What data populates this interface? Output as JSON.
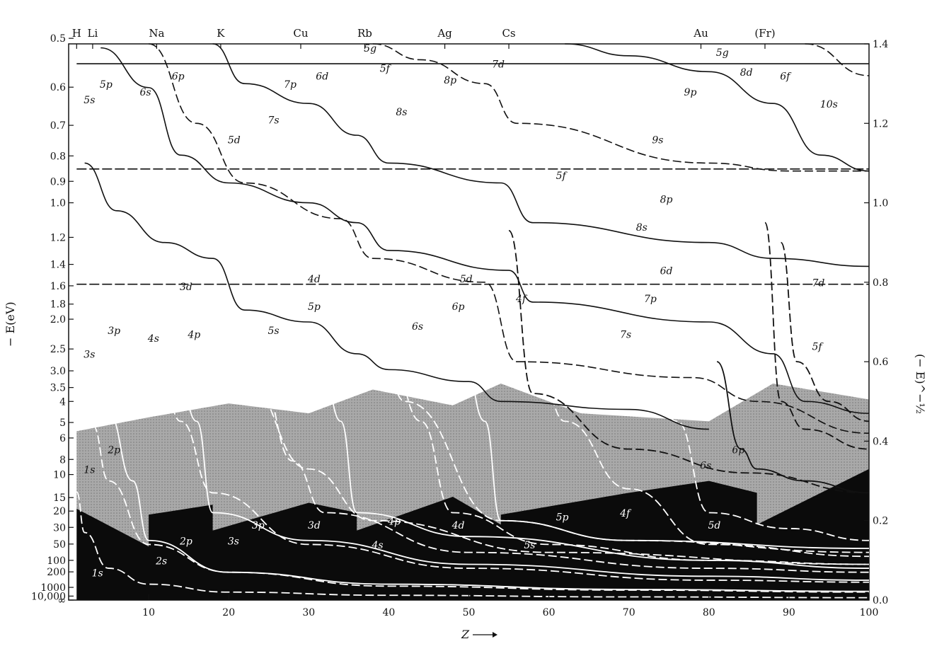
{
  "chart_data": {
    "type": "line",
    "title": "",
    "xlabel": "Z",
    "ylabel_left": "− E(eV)",
    "ylabel_right": "(− E)^−½",
    "xlim": [
      0,
      100
    ],
    "ylim_right": [
      0.0,
      1.4
    ],
    "x_ticks": [
      "10",
      "20",
      "30",
      "40",
      "50",
      "60",
      "70",
      "80",
      "90",
      "100"
    ],
    "left_ticks": [
      {
        "label": "0.5",
        "r": 1.414
      },
      {
        "label": "0.6",
        "r": 1.291
      },
      {
        "label": "0.7",
        "r": 1.195
      },
      {
        "label": "0.8",
        "r": 1.118
      },
      {
        "label": "0.9",
        "r": 1.054
      },
      {
        "label": "1.0",
        "r": 1.0
      },
      {
        "label": "1.2",
        "r": 0.913
      },
      {
        "label": "1.4",
        "r": 0.845
      },
      {
        "label": "1.6",
        "r": 0.791
      },
      {
        "label": "1.8",
        "r": 0.745
      },
      {
        "label": "2.0",
        "r": 0.707
      },
      {
        "label": "2.5",
        "r": 0.632
      },
      {
        "label": "3.0",
        "r": 0.577
      },
      {
        "label": "3.5",
        "r": 0.535
      },
      {
        "label": "4",
        "r": 0.5
      },
      {
        "label": "5",
        "r": 0.447
      },
      {
        "label": "6",
        "r": 0.408
      },
      {
        "label": "8",
        "r": 0.354
      },
      {
        "label": "10",
        "r": 0.316
      },
      {
        "label": "15",
        "r": 0.258
      },
      {
        "label": "20",
        "r": 0.224
      },
      {
        "label": "30",
        "r": 0.183
      },
      {
        "label": "50",
        "r": 0.141
      },
      {
        "label": "100",
        "r": 0.1
      },
      {
        "label": "200",
        "r": 0.071
      },
      {
        "label": "1000",
        "r": 0.032
      },
      {
        "label": "10,000",
        "r": 0.01
      },
      {
        "label": "∞",
        "r": 0.0
      }
    ],
    "right_ticks": [
      "0.0",
      "0.2",
      "0.4",
      "0.6",
      "0.8",
      "1.0",
      "1.2",
      "1.4"
    ],
    "elements": [
      {
        "sym": "H",
        "z": 1
      },
      {
        "sym": "Li",
        "z": 3
      },
      {
        "sym": "Na",
        "z": 11
      },
      {
        "sym": "K",
        "z": 19
      },
      {
        "sym": "Cu",
        "z": 29
      },
      {
        "sym": "Rb",
        "z": 37
      },
      {
        "sym": "Ag",
        "z": 47
      },
      {
        "sym": "Cs",
        "z": 55
      },
      {
        "sym": "Au",
        "z": 79
      },
      {
        "sym": "(Fr)",
        "z": 87
      }
    ],
    "bands": {
      "core_region_x": [
        1,
        10,
        10,
        18,
        18,
        30,
        36,
        36,
        48,
        54,
        54,
        70,
        80,
        86,
        86,
        100
      ],
      "core_region_r": [
        0.23,
        0.135,
        0.215,
        0.24,
        0.175,
        0.245,
        0.22,
        0.175,
        0.26,
        0.19,
        0.215,
        0.27,
        0.3,
        0.27,
        0.19,
        0.33
      ],
      "valence_region_x": [
        1,
        10,
        20,
        30,
        38,
        48,
        54,
        64,
        80,
        88,
        100
      ],
      "valence_region_r": [
        0.425,
        0.46,
        0.495,
        0.47,
        0.53,
        0.49,
        0.545,
        0.47,
        0.45,
        0.545,
        0.505
      ]
    },
    "series": [
      {
        "name": "1s",
        "style": "dashed",
        "x": [
          1,
          2,
          5,
          10,
          20,
          40,
          70,
          100
        ],
        "r": [
          0.272,
          0.17,
          0.08,
          0.04,
          0.02,
          0.012,
          0.008,
          0.006
        ]
      },
      {
        "name": "2s",
        "style": "dashed",
        "x": [
          3,
          5,
          10,
          20,
          40,
          70,
          100
        ],
        "r": [
          0.44,
          0.3,
          0.14,
          0.07,
          0.035,
          0.025,
          0.02
        ]
      },
      {
        "name": "2p",
        "style": "solid",
        "x": [
          5,
          8,
          10,
          20,
          40,
          70,
          100
        ],
        "r": [
          0.47,
          0.3,
          0.15,
          0.07,
          0.04,
          0.027,
          0.022
        ]
      },
      {
        "name": "3s",
        "style": "dashed",
        "x": [
          11,
          14,
          18,
          30,
          50,
          80,
          100
        ],
        "r": [
          0.63,
          0.45,
          0.27,
          0.14,
          0.08,
          0.05,
          0.045
        ]
      },
      {
        "name": "3p",
        "style": "solid",
        "x": [
          13,
          16,
          18,
          30,
          50,
          80,
          100
        ],
        "r": [
          0.66,
          0.45,
          0.22,
          0.15,
          0.09,
          0.06,
          0.05
        ]
      },
      {
        "name": "3d",
        "style": "dashed",
        "x": [
          21,
          24,
          28,
          32,
          50,
          80,
          100
        ],
        "r": [
          0.78,
          0.55,
          0.35,
          0.22,
          0.12,
          0.08,
          0.07
        ]
      },
      {
        "name": "4s",
        "style": "dashed",
        "x": [
          19,
          22,
          30,
          38,
          60,
          100
        ],
        "r": [
          0.83,
          0.55,
          0.33,
          0.2,
          0.12,
          0.09
        ]
      },
      {
        "name": "4p",
        "style": "solid",
        "x": [
          31,
          34,
          36,
          50,
          80,
          100
        ],
        "r": [
          0.7,
          0.45,
          0.22,
          0.16,
          0.1,
          0.08
        ]
      },
      {
        "name": "4d",
        "style": "dashed",
        "x": [
          39,
          44,
          48,
          60,
          80,
          100
        ],
        "r": [
          0.75,
          0.45,
          0.22,
          0.14,
          0.1,
          0.09
        ]
      },
      {
        "name": "4f",
        "style": "dashed",
        "x": [
          57,
          62,
          70,
          80,
          100
        ],
        "r": [
          0.8,
          0.45,
          0.28,
          0.14,
          0.11
        ]
      },
      {
        "name": "5s",
        "style": "dashed",
        "x": [
          37,
          42,
          54,
          70,
          100
        ],
        "r": [
          0.9,
          0.5,
          0.2,
          0.15,
          0.12
        ]
      },
      {
        "name": "5p",
        "style": "solid",
        "x": [
          49,
          52,
          54,
          70,
          100
        ],
        "r": [
          0.66,
          0.45,
          0.2,
          0.15,
          0.13
        ]
      },
      {
        "name": "5d",
        "style": "dashed",
        "x": [
          71,
          76,
          80,
          90,
          100
        ],
        "r": [
          0.68,
          0.45,
          0.22,
          0.18,
          0.15
        ]
      },
      {
        "name": "6s",
        "style": "dashed",
        "x": [
          55,
          58,
          70,
          85,
          100
        ],
        "r": [
          0.93,
          0.52,
          0.38,
          0.32,
          0.27
        ]
      },
      {
        "name": "6p",
        "style": "solid",
        "x": [
          81,
          84,
          86,
          92,
          100
        ],
        "r": [
          0.6,
          0.38,
          0.33,
          0.3,
          0.27
        ]
      },
      {
        "name": "7s",
        "style": "dashed",
        "x": [
          87,
          89,
          92,
          100
        ],
        "r": [
          0.95,
          0.5,
          0.43,
          0.38
        ]
      },
      {
        "name": "5f",
        "style": "dashed",
        "x": [
          89,
          91,
          95,
          100
        ],
        "r": [
          0.9,
          0.6,
          0.5,
          0.45
        ]
      }
    ],
    "labels_black": [
      {
        "t": "5s",
        "z": 1,
        "r": 1.25
      },
      {
        "t": "5p",
        "z": 3,
        "r": 1.29
      },
      {
        "t": "6s",
        "z": 8,
        "r": 1.27
      },
      {
        "t": "6p",
        "z": 12,
        "r": 1.31
      },
      {
        "t": "5g",
        "z": 36,
        "r": 1.38
      },
      {
        "t": "5f",
        "z": 38,
        "r": 1.33
      },
      {
        "t": "6d",
        "z": 30,
        "r": 1.31
      },
      {
        "t": "7p",
        "z": 26,
        "r": 1.29
      },
      {
        "t": "7s",
        "z": 24,
        "r": 1.2
      },
      {
        "t": "5d",
        "z": 19,
        "r": 1.15
      },
      {
        "t": "8s",
        "z": 40,
        "r": 1.22
      },
      {
        "t": "8p",
        "z": 46,
        "r": 1.3
      },
      {
        "t": "7d",
        "z": 52,
        "r": 1.34
      },
      {
        "t": "5g",
        "z": 80,
        "r": 1.37
      },
      {
        "t": "8d",
        "z": 83,
        "r": 1.32
      },
      {
        "t": "6f",
        "z": 88,
        "r": 1.31
      },
      {
        "t": "9p",
        "z": 76,
        "r": 1.27
      },
      {
        "t": "10s",
        "z": 93,
        "r": 1.24
      },
      {
        "t": "9s",
        "z": 72,
        "r": 1.15
      },
      {
        "t": "5f",
        "z": 60,
        "r": 1.06
      },
      {
        "t": "8p",
        "z": 73,
        "r": 1.0
      },
      {
        "t": "8s",
        "z": 70,
        "r": 0.93
      },
      {
        "t": "6d",
        "z": 73,
        "r": 0.82
      },
      {
        "t": "7d",
        "z": 92,
        "r": 0.79
      },
      {
        "t": "3d",
        "z": 13,
        "r": 0.78
      },
      {
        "t": "4d",
        "z": 29,
        "r": 0.8
      },
      {
        "t": "5d",
        "z": 48,
        "r": 0.8
      },
      {
        "t": "4f",
        "z": 55,
        "r": 0.75
      },
      {
        "t": "7p",
        "z": 71,
        "r": 0.75
      },
      {
        "t": "5p",
        "z": 29,
        "r": 0.73
      },
      {
        "t": "6p",
        "z": 47,
        "r": 0.73
      },
      {
        "t": "3p",
        "z": 4,
        "r": 0.67
      },
      {
        "t": "4s",
        "z": 9,
        "r": 0.65
      },
      {
        "t": "4p",
        "z": 14,
        "r": 0.66
      },
      {
        "t": "5s",
        "z": 24,
        "r": 0.67
      },
      {
        "t": "6s",
        "z": 42,
        "r": 0.68
      },
      {
        "t": "7s",
        "z": 68,
        "r": 0.66
      },
      {
        "t": "5f",
        "z": 92,
        "r": 0.63
      },
      {
        "t": "3s",
        "z": 1,
        "r": 0.61
      },
      {
        "t": "2p",
        "z": 4,
        "r": 0.37
      },
      {
        "t": "1s",
        "z": 1,
        "r": 0.32
      },
      {
        "t": "6p",
        "z": 82,
        "r": 0.37
      },
      {
        "t": "6s",
        "z": 78,
        "r": 0.33
      }
    ],
    "labels_white": [
      {
        "t": "1s",
        "z": 2,
        "r": 0.06
      },
      {
        "t": "2s",
        "z": 10,
        "r": 0.09
      },
      {
        "t": "2p",
        "z": 13,
        "r": 0.14
      },
      {
        "t": "3s",
        "z": 19,
        "r": 0.14
      },
      {
        "t": "3p",
        "z": 22,
        "r": 0.18
      },
      {
        "t": "3d",
        "z": 29,
        "r": 0.18
      },
      {
        "t": "4s",
        "z": 37,
        "r": 0.13
      },
      {
        "t": "4p",
        "z": 39,
        "r": 0.19
      },
      {
        "t": "4d",
        "z": 47,
        "r": 0.18
      },
      {
        "t": "5s",
        "z": 56,
        "r": 0.13
      },
      {
        "t": "5p",
        "z": 60,
        "r": 0.2
      },
      {
        "t": "4f",
        "z": 68,
        "r": 0.21
      },
      {
        "t": "5d",
        "z": 79,
        "r": 0.18
      }
    ]
  }
}
